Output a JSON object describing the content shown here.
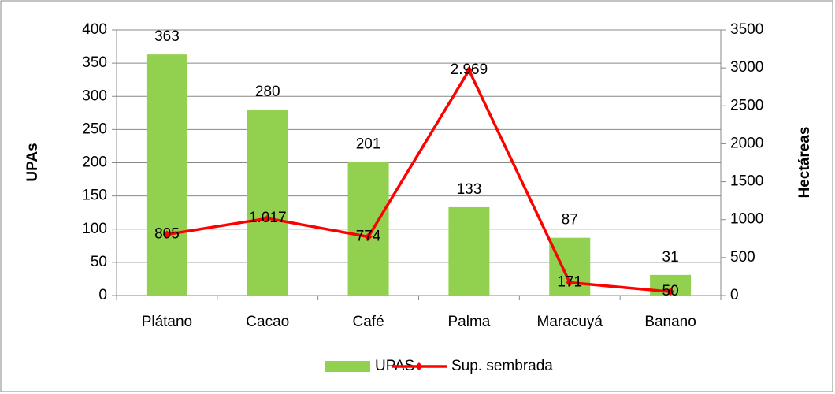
{
  "chart_data": {
    "type": "bar",
    "categories": [
      "Plátano",
      "Cacao",
      "Café",
      "Palma",
      "Maracuyá",
      "Banano"
    ],
    "series": [
      {
        "name": "UPAS",
        "color": "#92d050",
        "values": [
          363,
          280,
          201,
          133,
          87,
          31
        ]
      },
      {
        "name": "Sup. sembrada",
        "color": "#ff0000",
        "type": "line",
        "axis": "y2",
        "values": [
          805,
          1017,
          774,
          2969,
          171,
          50
        ],
        "value_labels": [
          "805",
          "1.017",
          "774",
          "2.969",
          "171",
          "50"
        ]
      }
    ],
    "ylabel": "UPAs",
    "y2label": "Hectáreas",
    "ylim": [
      0,
      400
    ],
    "yticks": [
      0,
      50,
      100,
      150,
      200,
      250,
      300,
      350,
      400
    ],
    "y2lim": [
      0,
      3500
    ],
    "y2ticks": [
      0,
      500,
      1000,
      1500,
      2000,
      2500,
      3000,
      3500
    ],
    "grid": true,
    "legend": "bottom"
  }
}
